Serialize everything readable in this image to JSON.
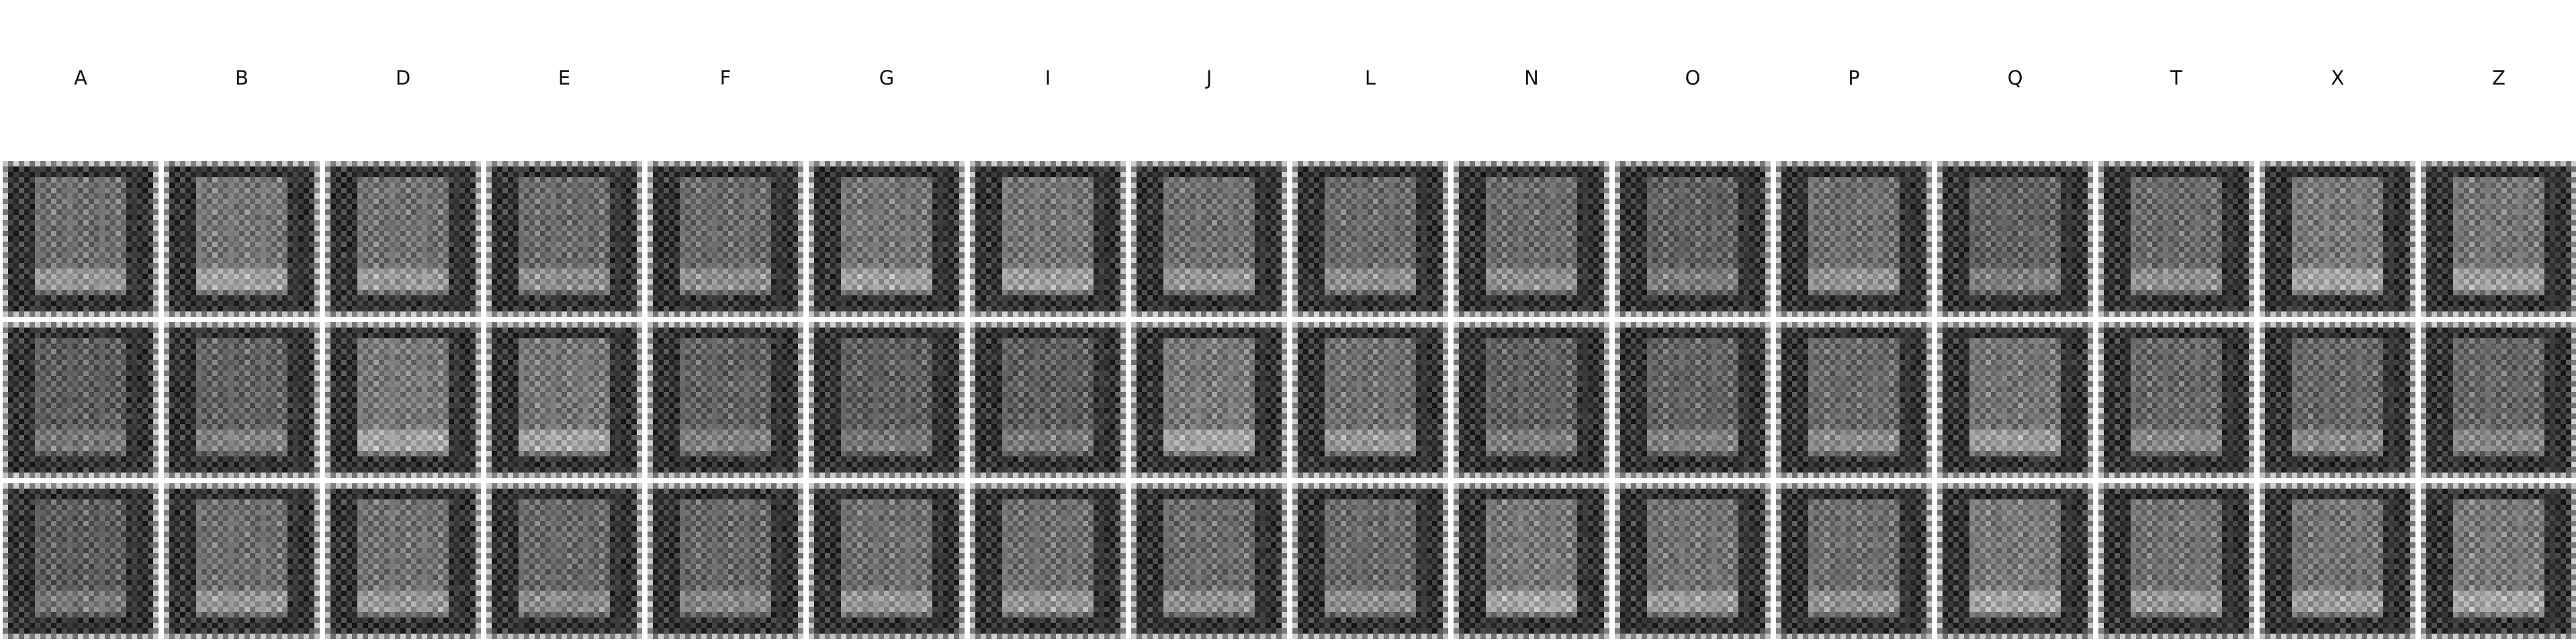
{
  "columns": [
    "A",
    "B",
    "D",
    "E",
    "F",
    "G",
    "I",
    "J",
    "L",
    "N",
    "O",
    "P",
    "Q",
    "T",
    "X",
    "Z"
  ],
  "rows": 3,
  "tile_icon": "generated-glyph-image"
}
